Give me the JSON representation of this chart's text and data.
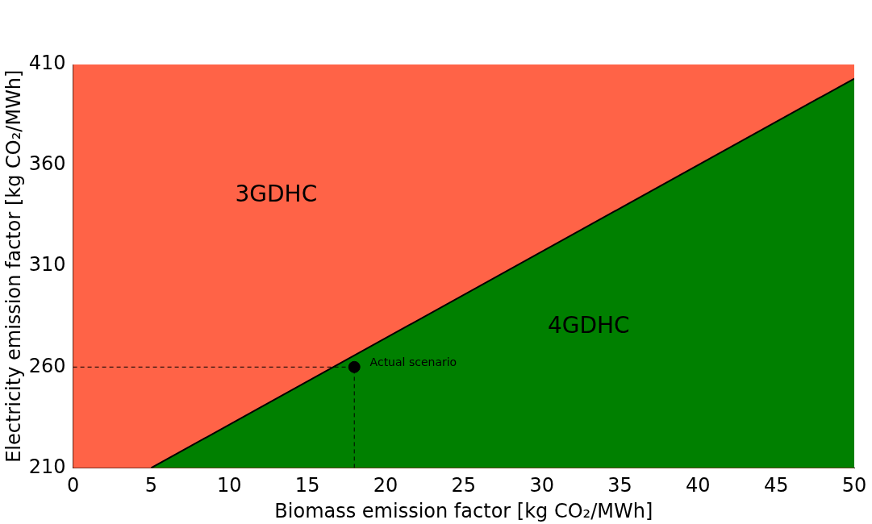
{
  "chart_data": {
    "type": "area",
    "xlabel": "Biomass emission factor [kg CO₂/MWh]",
    "ylabel": "Electricity emission factor [kg CO₂/MWh]",
    "xlim": [
      0,
      50
    ],
    "ylim": [
      210,
      410
    ],
    "xticks": [
      0,
      5,
      10,
      15,
      20,
      25,
      30,
      35,
      40,
      45,
      50
    ],
    "yticks": [
      210,
      260,
      310,
      360,
      410
    ],
    "grid": false,
    "legend": false,
    "series": [
      {
        "color": "#008000",
        "x": [
          5,
          50
        ],
        "values": [
          210,
          403
        ]
      },
      {
        "type": "line",
        "color": "#000000",
        "line_style": "dashed",
        "x": [
          0,
          18
        ],
        "values": [
          260,
          260
        ]
      },
      {
        "type": "line",
        "color": "#000000",
        "line_style": "dashed",
        "x": [
          18,
          18
        ],
        "values": [
          210,
          260
        ]
      },
      {
        "type": "scatter",
        "color": "#000000",
        "marker": "circle",
        "x": [
          18
        ],
        "values": [
          260
        ]
      }
    ],
    "bands": [
      {
        "axis": "y",
        "from": 210,
        "to": 410,
        "color": "#ff6347"
      }
    ],
    "annotations": [
      "3GDHC",
      "4GDHC",
      "Actual scenario"
    ]
  }
}
